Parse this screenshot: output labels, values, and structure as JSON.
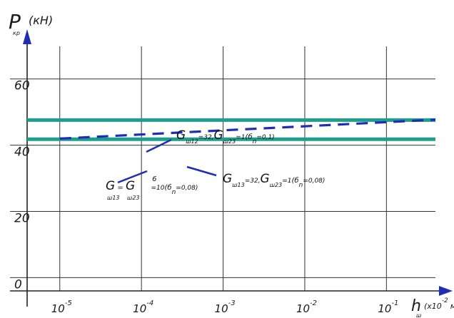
{
  "chart_data": {
    "type": "line",
    "title": "",
    "ylabel": {
      "main": "P",
      "sub": "кр",
      "unit": "(кН)"
    },
    "xlabel": {
      "main": "h",
      "sub": "ш",
      "unit": "(х10",
      "exp": "-2",
      "tail": "м)"
    },
    "x_scale": "log",
    "xlim": [
      -5.4,
      -0.4
    ],
    "ylim": [
      -4,
      72
    ],
    "y_ticks": [
      {
        "value": 0,
        "label": "0"
      },
      {
        "value": 20,
        "label": "20"
      },
      {
        "value": 40,
        "label": "40"
      },
      {
        "value": 60,
        "label": "60"
      }
    ],
    "x_ticks": [
      {
        "value": -5,
        "base": "10",
        "exp": "-5"
      },
      {
        "value": -4,
        "base": "10",
        "exp": "-4"
      },
      {
        "value": -3,
        "base": "10",
        "exp": "-3"
      },
      {
        "value": -2,
        "base": "10",
        "exp": "-2"
      },
      {
        "value": -1,
        "base": "10",
        "exp": "-1"
      }
    ],
    "grid": true,
    "series": [
      {
        "style": "solid",
        "color": "#1f9e8e",
        "x": [
          -5.4,
          -0.4
        ],
        "y": [
          47.6,
          47.6
        ]
      },
      {
        "style": "solid",
        "color": "#1f9e8e",
        "x": [
          -5.4,
          -0.4
        ],
        "y": [
          41.8,
          41.8
        ]
      },
      {
        "style": "dashed",
        "color": "#1f2db5",
        "x": [
          -5.0,
          -0.4
        ],
        "y": [
          42.0,
          47.7
        ]
      }
    ],
    "annotations": [
      {
        "text": "Gш12=32,Gш23=1(бn=0,1)"
      },
      {
        "text": "Gш13=Gш23=10⁶(бn=0,08)"
      },
      {
        "text": "Gш13=32,Gш23=1(бn=0,08)"
      }
    ]
  }
}
